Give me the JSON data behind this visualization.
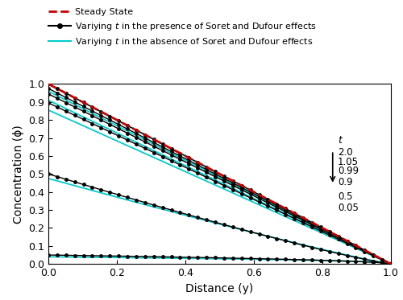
{
  "title": "",
  "xlabel": "Distance (y)",
  "ylabel": "Concentration (ϕ)",
  "xlim": [
    0,
    1
  ],
  "ylim": [
    0,
    1
  ],
  "xticks": [
    0,
    0.2,
    0.4,
    0.6,
    0.8,
    1.0
  ],
  "yticks": [
    0,
    0.1,
    0.2,
    0.3,
    0.4,
    0.5,
    0.6,
    0.7,
    0.8,
    0.9,
    1.0
  ],
  "t_values": [
    2.0,
    1.05,
    0.99,
    0.9,
    0.5,
    0.05
  ],
  "steady_state_color": "#cc0000",
  "with_effects_color": "#000000",
  "without_effects_color": "#00cccc",
  "legend_entries": [
    "Steady State",
    "Variying $t$ in the presence of Soret and Dufour effects",
    "Variying $t$ in the absence of Soret and Dufour effects"
  ],
  "annotation_t": "$t$",
  "annotation_values": [
    "2.0",
    "1.05",
    "0.99",
    "0.9",
    "0.5",
    "0.05"
  ],
  "background_color": "#ffffff",
  "with_start": [
    1.0,
    0.975,
    0.945,
    0.895,
    0.5,
    0.05
  ],
  "without_start": [
    1.0,
    0.96,
    0.91,
    0.855,
    0.475,
    0.04
  ],
  "with_power": [
    1.0,
    1.0,
    1.0,
    1.0,
    1.15,
    0.55
  ],
  "without_power": [
    1.0,
    1.0,
    1.0,
    1.0,
    1.1,
    0.45
  ]
}
